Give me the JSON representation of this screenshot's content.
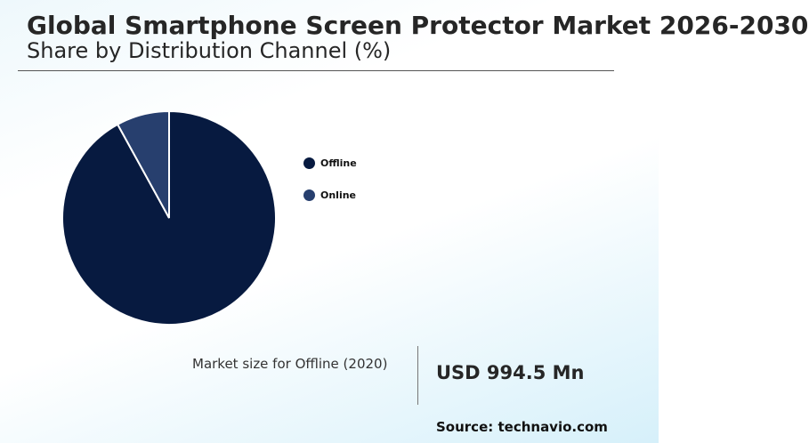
{
  "header": {
    "title": "Global Smartphone Screen Protector Market 2026-2030",
    "subtitle": "Share by Distribution Channel (%)"
  },
  "chart_data": {
    "type": "pie",
    "categories": [
      "Offline",
      "Online"
    ],
    "values": [
      92,
      8
    ],
    "colors": [
      "#071a40",
      "#273f6e"
    ],
    "legend_position": "right"
  },
  "market_size": {
    "label": "Market size for Offline (2020)",
    "value": "USD 994.5 Mn"
  },
  "source": "Source: technavio.com"
}
